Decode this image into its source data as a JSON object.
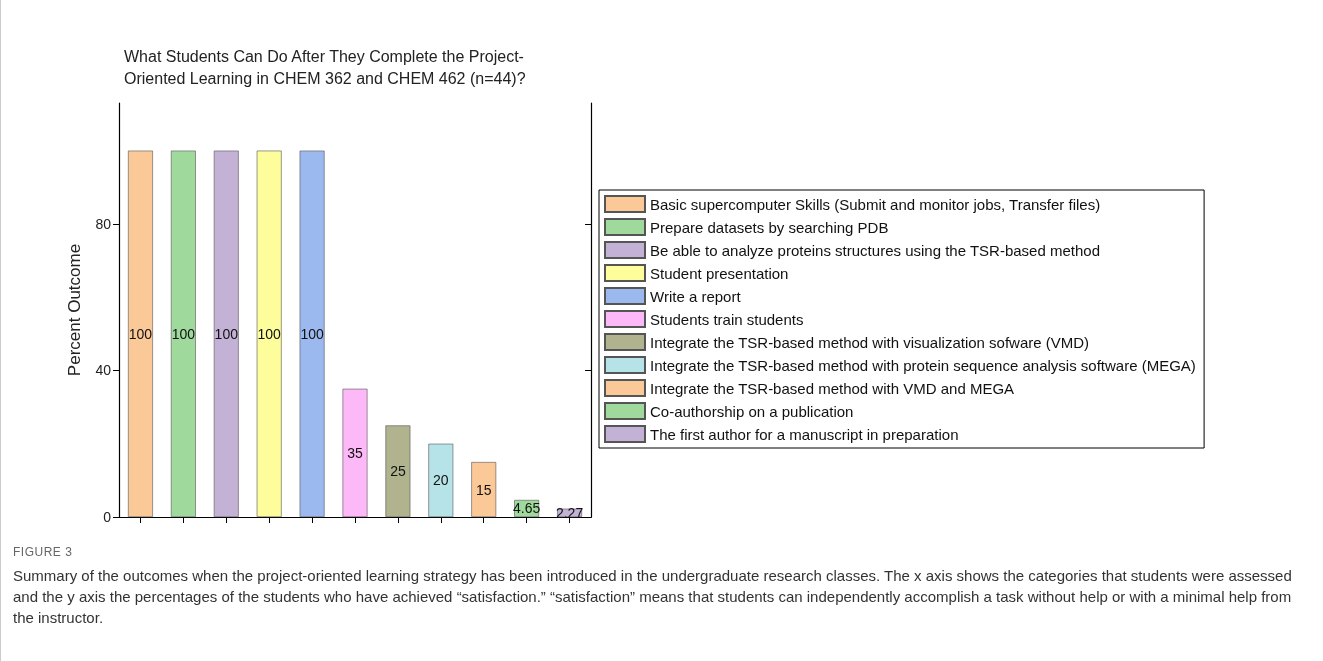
{
  "chart_data": {
    "type": "bar",
    "title": "What Students Can Do After They Complete the Project-\nOriented Learning in CHEM 362 and CHEM 462 (n=44)?",
    "ylabel": "Percent Outcome",
    "categories": [
      null,
      null,
      null,
      null,
      null,
      null,
      null,
      null,
      null,
      null,
      null
    ],
    "series": [
      {
        "name": "Basic supercomputer Skills (Submit and monitor jobs, Transfer files)",
        "color": "#fbc898",
        "values": [
          100,
          null,
          null,
          null,
          null,
          null,
          null,
          null,
          null,
          null,
          null
        ]
      },
      {
        "name": "Prepare datasets by searching PDB",
        "color": "#9fd99c",
        "values": [
          null,
          100,
          null,
          null,
          null,
          null,
          null,
          null,
          null,
          null,
          null
        ]
      },
      {
        "name": "Be able to analyze proteins structures using the TSR-based method",
        "color": "#c3b1d6",
        "values": [
          null,
          null,
          100,
          null,
          null,
          null,
          null,
          null,
          null,
          null,
          null
        ]
      },
      {
        "name": "Student presentation",
        "color": "#fdfd9c",
        "values": [
          null,
          null,
          null,
          100,
          null,
          null,
          null,
          null,
          null,
          null,
          null
        ]
      },
      {
        "name": "Write a report",
        "color": "#9bb8ef",
        "values": [
          null,
          null,
          null,
          null,
          100,
          null,
          null,
          null,
          null,
          null,
          null
        ]
      },
      {
        "name": "Students train students",
        "color": "#fdb8f7",
        "values": [
          null,
          null,
          null,
          null,
          null,
          35,
          null,
          null,
          null,
          null,
          null
        ]
      },
      {
        "name": "Integrate the TSR-based method with visualization sofware (VMD)",
        "color": "#b0b38e",
        "values": [
          null,
          null,
          null,
          null,
          null,
          null,
          25,
          null,
          null,
          null,
          null
        ]
      },
      {
        "name": "Integrate the TSR-based method with protein sequence analysis software (MEGA)",
        "color": "#b6e3e8",
        "values": [
          null,
          null,
          null,
          null,
          null,
          null,
          null,
          20,
          null,
          null,
          null
        ]
      },
      {
        "name": "Integrate the TSR-based method with VMD and MEGA",
        "color": "#fbc898",
        "values": [
          null,
          null,
          null,
          null,
          null,
          null,
          null,
          null,
          15,
          null,
          null
        ]
      },
      {
        "name": "Co-authorship on a publication",
        "color": "#9fd99c",
        "values": [
          null,
          null,
          null,
          null,
          null,
          null,
          null,
          null,
          null,
          4.65,
          null
        ]
      },
      {
        "name": "The first author for a manuscript in preparation",
        "color": "#c3b1d6",
        "values": [
          null,
          null,
          null,
          null,
          null,
          null,
          null,
          null,
          null,
          null,
          2.27
        ]
      }
    ],
    "ylim": [
      0,
      113
    ],
    "yticks": [
      0,
      40,
      80
    ],
    "grid": false,
    "legend": "right",
    "data_labels": true,
    "annotations": [
      "FIGURE 3",
      "Summary of the outcomes when the project-oriented learning strategy has been introduced in the undergraduate research classes. The x axis shows the categories that students were assessed and the y axis the percentages of the students who have achieved “satisfaction.” “satisfaction” means that students can independently accomplish a task without help or with a minimal help from the instructor."
    ]
  }
}
